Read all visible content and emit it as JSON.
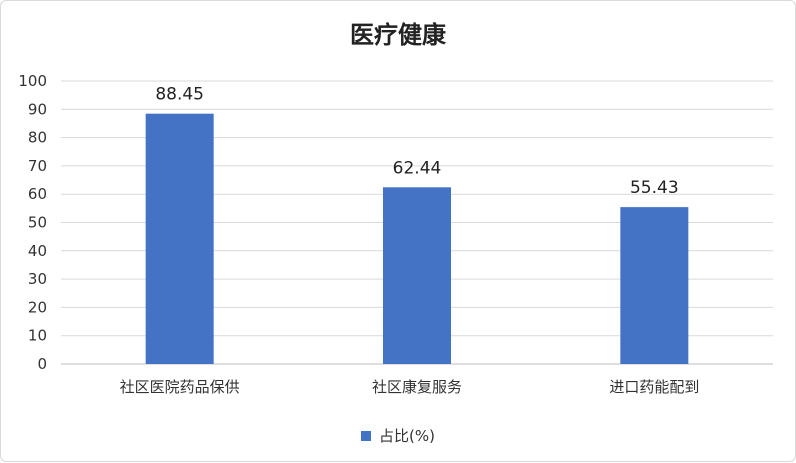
{
  "chart_data": {
    "type": "bar",
    "title": "医疗健康",
    "categories": [
      "社区医院药品保供",
      "社区康复服务",
      "进口药能配到"
    ],
    "series": [
      {
        "name": "占比(%)",
        "values": [
          88.45,
          62.44,
          55.43
        ],
        "color": "#4472c4"
      }
    ],
    "ylim": [
      0,
      100
    ],
    "yticks": [
      0,
      10,
      20,
      30,
      40,
      50,
      60,
      70,
      80,
      90,
      100
    ],
    "grid": true,
    "legend_position": "bottom"
  }
}
